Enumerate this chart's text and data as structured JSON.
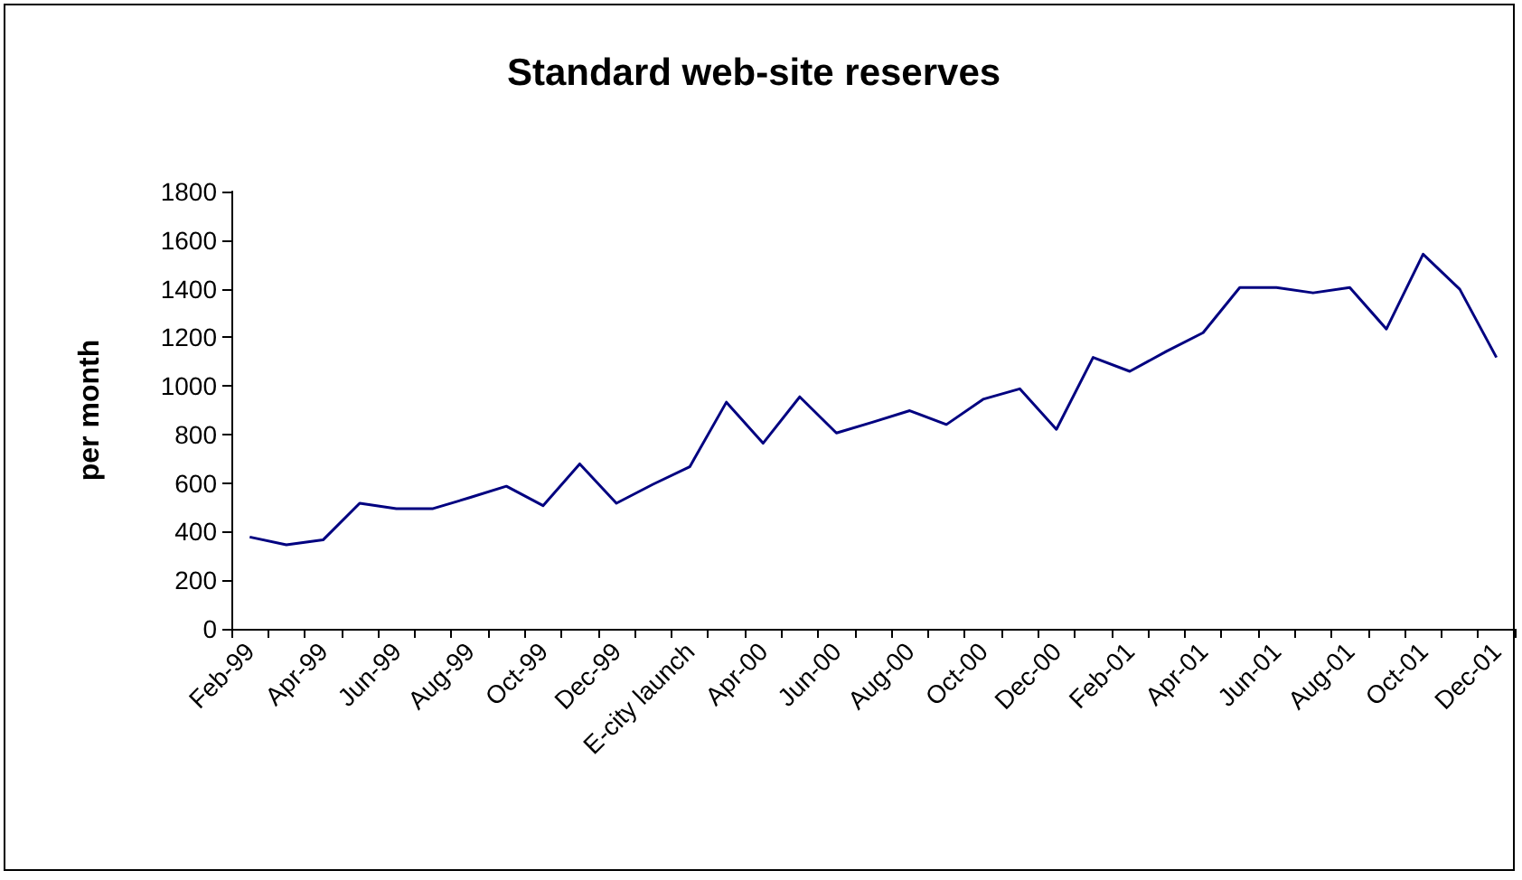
{
  "chart_data": {
    "type": "line",
    "title": "Standard web-site reserves",
    "ylabel": "per month",
    "categories": [
      "Feb-99",
      null,
      "Apr-99",
      null,
      "Jun-99",
      null,
      "Aug-99",
      null,
      "Oct-99",
      null,
      "Dec-99",
      null,
      "E-city launch",
      null,
      "Apr-00",
      null,
      "Jun-00",
      null,
      "Aug-00",
      null,
      "Oct-00",
      null,
      "Dec-00",
      null,
      "Feb-01",
      null,
      "Apr-01",
      null,
      "Jun-01",
      null,
      "Aug-01",
      null,
      "Oct-01",
      null,
      "Dec-01"
    ],
    "series": [
      {
        "color": "#000080",
        "values": [
          378,
          346,
          366,
          517,
          495,
          495,
          540,
          587,
          507,
          679,
          517,
          595,
          667,
          933,
          764,
          955,
          806,
          851,
          898,
          841,
          945,
          988,
          821,
          1117,
          1060,
          1142,
          1219,
          1405,
          1405,
          1383,
          1405,
          1234,
          1542,
          1398,
          1117
        ]
      }
    ],
    "ylim": [
      0,
      1800
    ],
    "yticks": [
      0,
      200,
      400,
      600,
      800,
      1000,
      1200,
      1400,
      1600,
      1800
    ],
    "grid": false,
    "marker": "none",
    "line_style": "solid"
  }
}
